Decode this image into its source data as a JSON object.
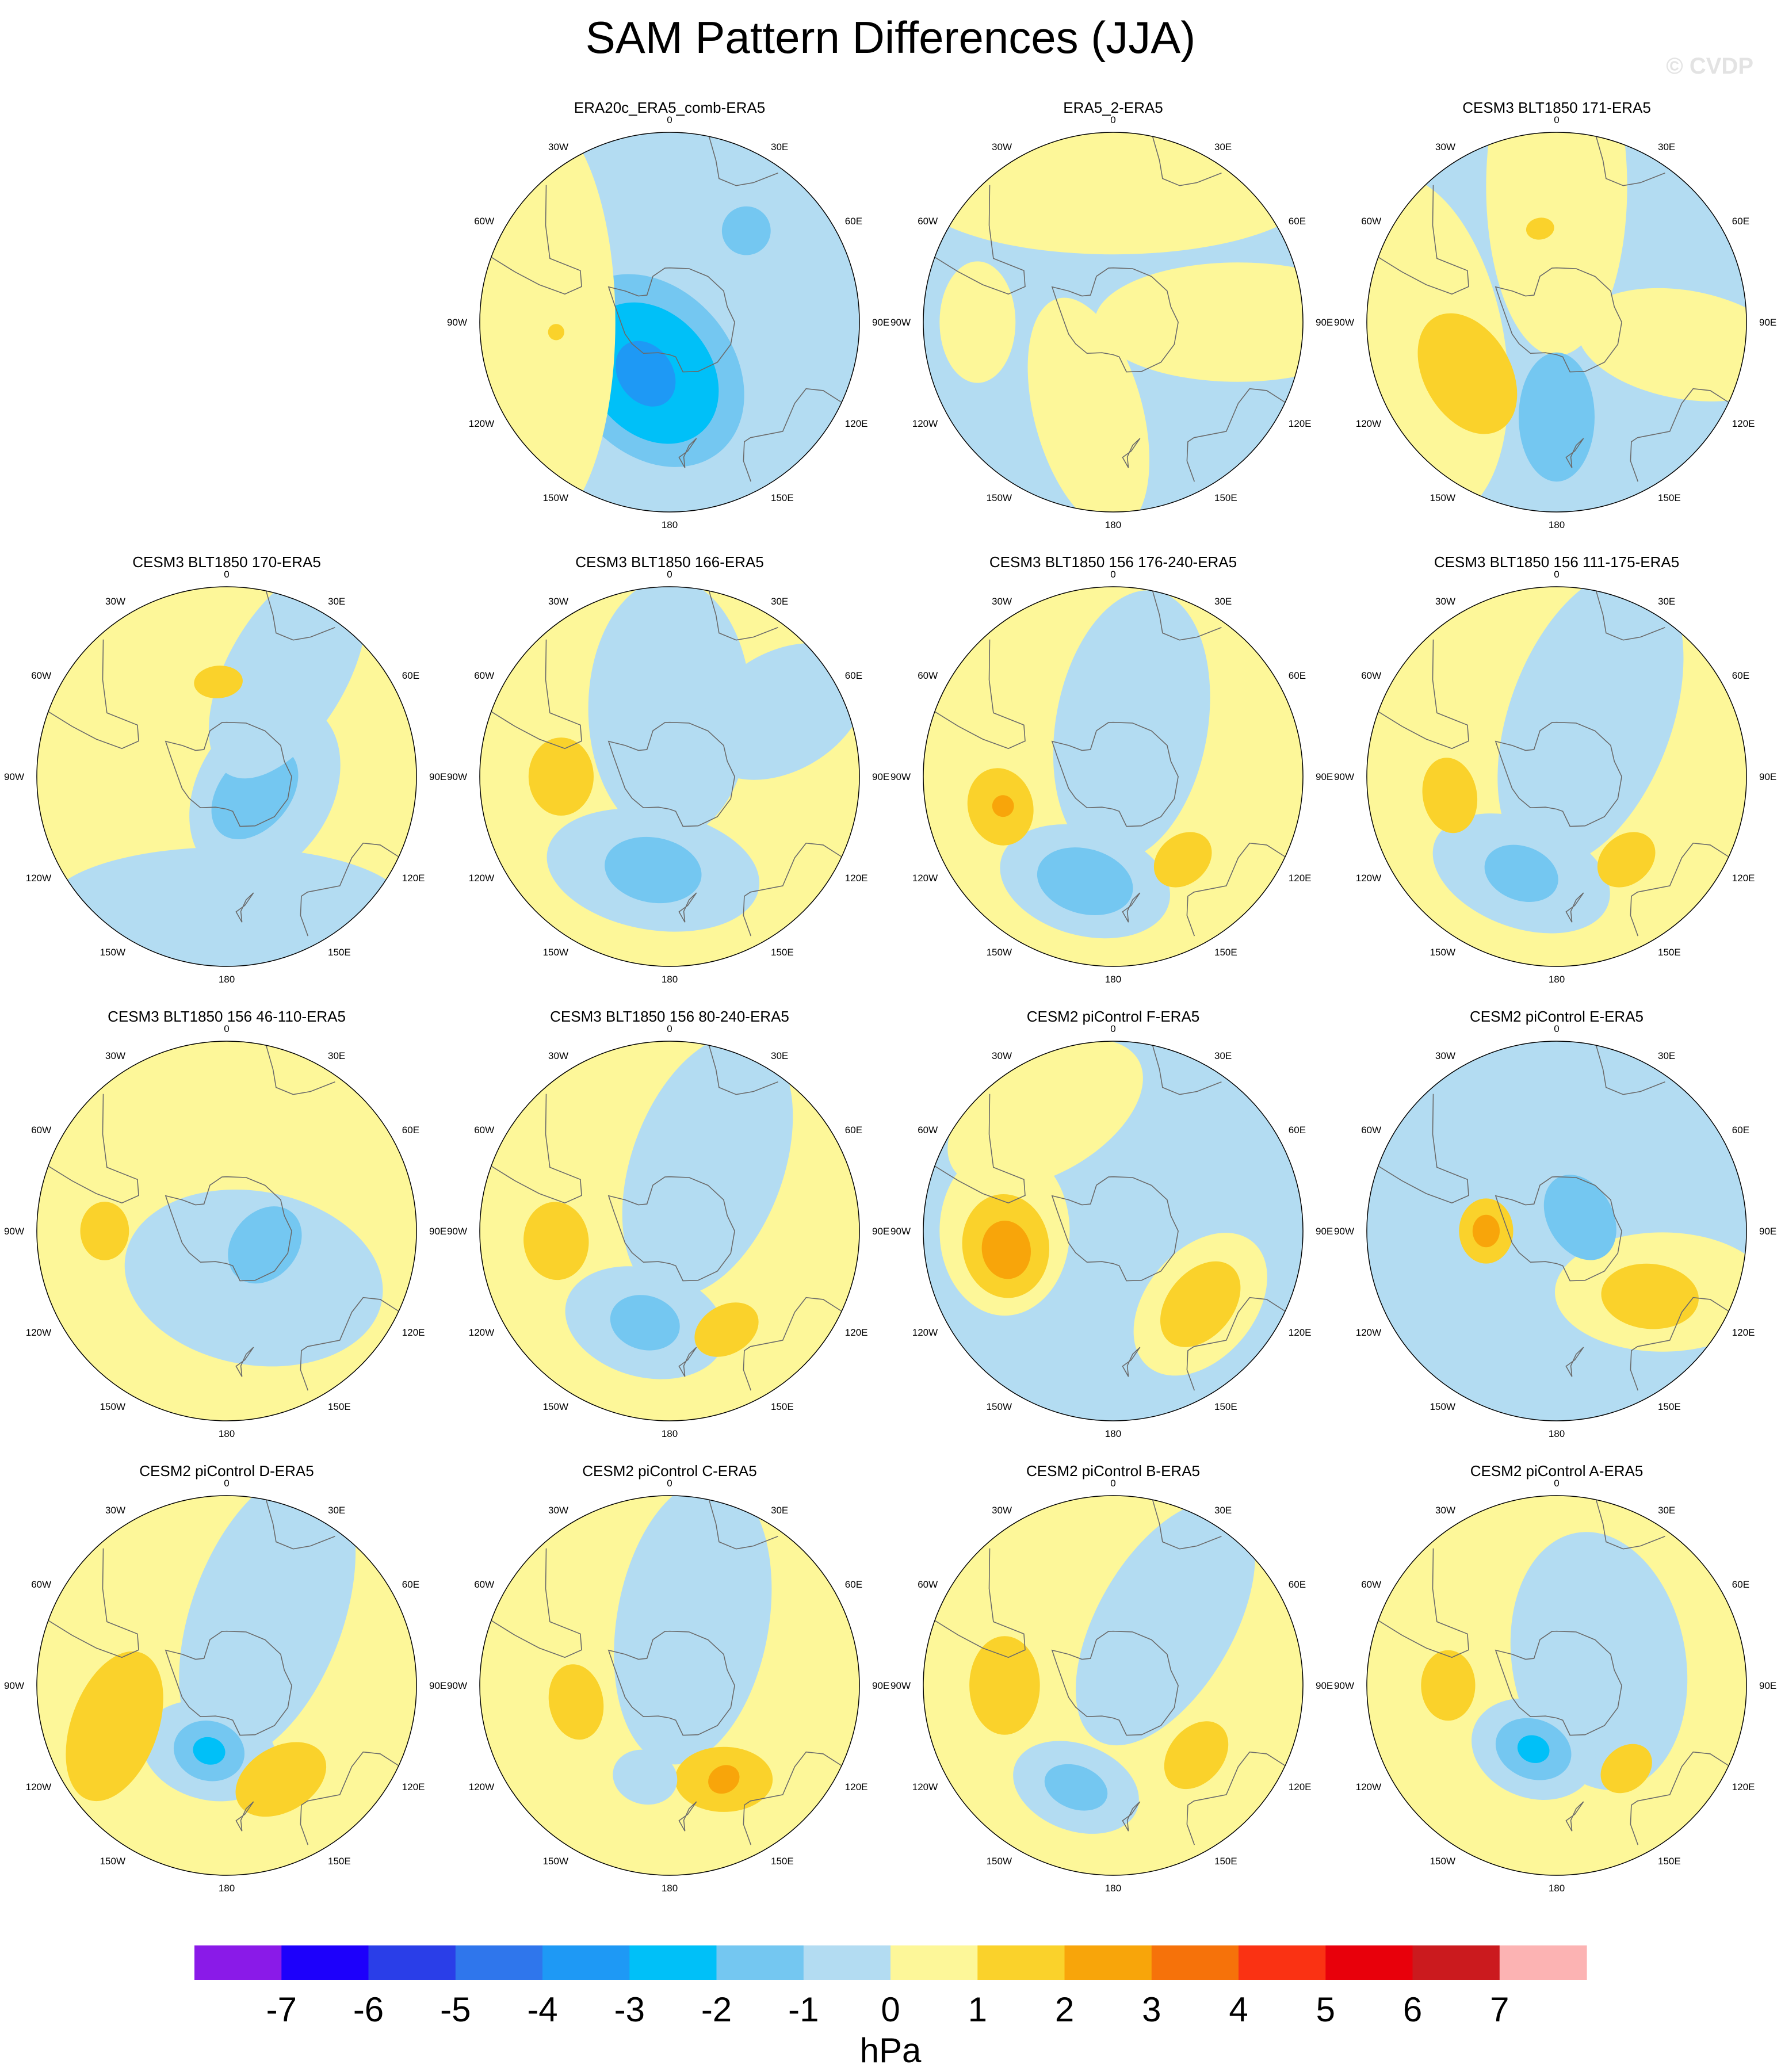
{
  "page": {
    "title": "SAM Pattern Differences (JJA)",
    "watermark": "© CVDP"
  },
  "chart_data": {
    "type": "contour",
    "projection": "south-polar-stereographic",
    "variable": "Sea level pressure difference",
    "units": "hPa",
    "longitude_labels": [
      "0",
      "30E",
      "60E",
      "90E",
      "120E",
      "150E",
      "180",
      "150W",
      "120W",
      "90W",
      "60W",
      "30W"
    ],
    "colorbar": {
      "ticks": [
        "-7",
        "-6",
        "-5",
        "-4",
        "-3",
        "-2",
        "-1",
        "0",
        "1",
        "2",
        "3",
        "4",
        "5",
        "6",
        "7"
      ],
      "colors": [
        "#8a1ae8",
        "#1d00fb",
        "#2a3ee8",
        "#2f76ec",
        "#1e99f5",
        "#00c0f8",
        "#74c7f1",
        "#b3dcf2",
        "#fdf799",
        "#fad22b",
        "#f8a50a",
        "#f6720a",
        "#fa3213",
        "#e8000b",
        "#cb1a1e",
        "#fcb3b3"
      ],
      "units": "hPa"
    },
    "panels": [
      {
        "title": "ERA20c_ERA5_comb-ERA5",
        "background": "neg1",
        "features": [
          {
            "lat": -71,
            "lon": 200,
            "lvl": "neg2",
            "r": 30,
            "s": 1.3,
            "rot": 30
          },
          {
            "lat": -70,
            "lon": 200,
            "lvl": "neg3",
            "r": 22,
            "s": 1.3,
            "rot": 30
          },
          {
            "lat": -69,
            "lon": 205,
            "lvl": "neg4",
            "r": 10,
            "s": 1.3,
            "rot": 30
          },
          {
            "lat": -46,
            "lon": 40,
            "lvl": "neg2",
            "r": 9,
            "s": 1,
            "rot": 0
          },
          {
            "lat": -40,
            "lon": 270,
            "lvl": "pos1",
            "r": 30,
            "s": 2.6,
            "rot": 0
          },
          {
            "lat": -48,
            "lon": 265,
            "lvl": "pos2",
            "r": 3,
            "s": 1,
            "rot": 0
          }
        ]
      },
      {
        "title": "ERA5_2-ERA5",
        "background": "neg1",
        "features": [
          {
            "lat": -40,
            "lon": 0,
            "lvl": "pos1",
            "r": 25,
            "s": 3,
            "rot": 0
          },
          {
            "lat": -44,
            "lon": 90,
            "lvl": "pos1",
            "r": 22,
            "s": 2.4,
            "rot": 90
          },
          {
            "lat": -55,
            "lon": 195,
            "lvl": "pos1",
            "r": 20,
            "s": 2.2,
            "rot": 60
          },
          {
            "lat": -40,
            "lon": 270,
            "lvl": "pos1",
            "r": 14,
            "s": 1.6,
            "rot": 0
          }
        ]
      },
      {
        "title": "CESM3 BLT1850 171-ERA5",
        "background": "neg1",
        "features": [
          {
            "lat": -38,
            "lon": 260,
            "lvl": "pos1",
            "r": 32,
            "s": 2,
            "rot": 0
          },
          {
            "lat": -40,
            "lon": 0,
            "lvl": "pos1",
            "r": 26,
            "s": 2.4,
            "rot": 90
          },
          {
            "lat": -42,
            "lon": 100,
            "lvl": "pos1",
            "r": 20,
            "s": 2,
            "rot": 90
          },
          {
            "lat": -52,
            "lon": 240,
            "lvl": "pos2",
            "r": 16,
            "s": 1.5,
            "rot": 0
          },
          {
            "lat": -55,
            "lon": 180,
            "lvl": "neg2",
            "r": 14,
            "s": 1.7,
            "rot": 90
          },
          {
            "lat": -55,
            "lon": 350,
            "lvl": "pos2",
            "r": 4,
            "s": 1.3,
            "rot": 0
          }
        ]
      },
      {
        "title": "CESM3 BLT1850 170-ERA5",
        "background": "pos1",
        "features": [
          {
            "lat": -75,
            "lon": 110,
            "lvl": "neg1",
            "r": 25,
            "s": 1.4,
            "rot": 10
          },
          {
            "lat": -78,
            "lon": 120,
            "lvl": "neg2",
            "r": 13,
            "s": 1.5,
            "rot": 10
          },
          {
            "lat": -45,
            "lon": 30,
            "lvl": "neg1",
            "r": 22,
            "s": 2,
            "rot": 90
          },
          {
            "lat": -42,
            "lon": 180,
            "lvl": "neg1",
            "r": 22,
            "s": 3,
            "rot": 0
          },
          {
            "lat": -55,
            "lon": 355,
            "lvl": "pos2",
            "r": 6,
            "s": 1.5,
            "rot": 0
          }
        ]
      },
      {
        "title": "CESM3 BLT1850 166-ERA5",
        "background": "pos1",
        "features": [
          {
            "lat": -65,
            "lon": 0,
            "lvl": "neg1",
            "r": 30,
            "s": 1.6,
            "rot": 90
          },
          {
            "lat": -55,
            "lon": 190,
            "lvl": "neg1",
            "r": 22,
            "s": 1.8,
            "rot": 0
          },
          {
            "lat": -55,
            "lon": 190,
            "lvl": "neg2",
            "r": 12,
            "s": 1.5,
            "rot": 0
          },
          {
            "lat": -42,
            "lon": 60,
            "lvl": "neg1",
            "r": 22,
            "s": 1.5,
            "rot": 90
          },
          {
            "lat": -50,
            "lon": 270,
            "lvl": "pos2",
            "r": 12,
            "s": 1.2,
            "rot": 0
          }
        ]
      },
      {
        "title": "CESM3 BLT1850 156 176-240-ERA5",
        "background": "pos1",
        "features": [
          {
            "lat": -70,
            "lon": 20,
            "lvl": "neg1",
            "r": 28,
            "s": 1.8,
            "rot": 80
          },
          {
            "lat": -50,
            "lon": 195,
            "lvl": "neg1",
            "r": 20,
            "s": 1.6,
            "rot": 0
          },
          {
            "lat": -50,
            "lon": 195,
            "lvl": "neg2",
            "r": 12,
            "s": 1.5,
            "rot": 0
          },
          {
            "lat": -47,
            "lon": 255,
            "lvl": "pos2",
            "r": 12,
            "s": 1.2,
            "rot": 0
          },
          {
            "lat": -48,
            "lon": 255,
            "lvl": "pos3",
            "r": 4,
            "s": 1,
            "rot": 0
          },
          {
            "lat": -50,
            "lon": 140,
            "lvl": "pos2",
            "r": 9,
            "s": 1.3,
            "rot": 0
          }
        ]
      },
      {
        "title": "CESM3 BLT1850 156 111-175-ERA5",
        "background": "pos1",
        "features": [
          {
            "lat": -65,
            "lon": 30,
            "lvl": "neg1",
            "r": 30,
            "s": 1.9,
            "rot": 80
          },
          {
            "lat": -52,
            "lon": 200,
            "lvl": "neg1",
            "r": 20,
            "s": 1.7,
            "rot": 0
          },
          {
            "lat": -52,
            "lon": 200,
            "lvl": "neg2",
            "r": 10,
            "s": 1.4,
            "rot": 0
          },
          {
            "lat": -50,
            "lon": 260,
            "lvl": "pos2",
            "r": 10,
            "s": 1.4,
            "rot": 0
          },
          {
            "lat": -50,
            "lon": 140,
            "lvl": "pos2",
            "r": 9,
            "s": 1.3,
            "rot": 0
          }
        ]
      },
      {
        "title": "CESM3 BLT1850 156 46-110-ERA5",
        "background": "pos1",
        "features": [
          {
            "lat": -70,
            "lon": 150,
            "lvl": "neg1",
            "r": 32,
            "s": 1.5,
            "rot": 40
          },
          {
            "lat": -75,
            "lon": 110,
            "lvl": "neg2",
            "r": 12,
            "s": 1.3,
            "rot": 20
          },
          {
            "lat": -45,
            "lon": 270,
            "lvl": "pos2",
            "r": 9,
            "s": 1.2,
            "rot": 0
          }
        ]
      },
      {
        "title": "CESM3 BLT1850 156 80-240-ERA5",
        "background": "pos1",
        "features": [
          {
            "lat": -62,
            "lon": 30,
            "lvl": "neg1",
            "r": 28,
            "s": 1.8,
            "rot": 80
          },
          {
            "lat": -55,
            "lon": 195,
            "lvl": "neg1",
            "r": 20,
            "s": 1.5,
            "rot": 0
          },
          {
            "lat": -55,
            "lon": 195,
            "lvl": "neg2",
            "r": 10,
            "s": 1.3,
            "rot": 0
          },
          {
            "lat": -48,
            "lon": 265,
            "lvl": "pos2",
            "r": 12,
            "s": 1.2,
            "rot": 0
          },
          {
            "lat": -48,
            "lon": 150,
            "lvl": "pos2",
            "r": 9,
            "s": 1.4,
            "rot": 0
          }
        ]
      },
      {
        "title": "CESM2 piControl F-ERA5",
        "background": "neg1",
        "features": [
          {
            "lat": -50,
            "lon": 270,
            "lvl": "pos1",
            "r": 24,
            "s": 1.3,
            "rot": 0
          },
          {
            "lat": -50,
            "lon": 262,
            "lvl": "pos2",
            "r": 16,
            "s": 1.2,
            "rot": 0
          },
          {
            "lat": -50,
            "lon": 260,
            "lvl": "pos3",
            "r": 9,
            "s": 1.2,
            "rot": 0
          },
          {
            "lat": -48,
            "lon": 130,
            "lvl": "pos1",
            "r": 20,
            "s": 1.5,
            "rot": 0
          },
          {
            "lat": -48,
            "lon": 130,
            "lvl": "pos2",
            "r": 12,
            "s": 1.5,
            "rot": 0
          },
          {
            "lat": -40,
            "lon": 330,
            "lvl": "pos1",
            "r": 22,
            "s": 1.8,
            "rot": 0
          }
        ]
      },
      {
        "title": "CESM2 piControl E-ERA5",
        "background": "neg1",
        "features": [
          {
            "lat": -64,
            "lon": 270,
            "lvl": "pos2",
            "r": 10,
            "s": 1.2,
            "rot": 0
          },
          {
            "lat": -64,
            "lon": 270,
            "lvl": "pos3",
            "r": 5,
            "s": 1.2,
            "rot": 0
          },
          {
            "lat": -45,
            "lon": 120,
            "lvl": "pos1",
            "r": 22,
            "s": 1.8,
            "rot": 60
          },
          {
            "lat": -48,
            "lon": 125,
            "lvl": "pos2",
            "r": 12,
            "s": 1.5,
            "rot": 60
          },
          {
            "lat": -80,
            "lon": 60,
            "lvl": "neg2",
            "r": 12,
            "s": 1.4,
            "rot": 0
          }
        ]
      },
      {
        "title": "CESM2 piControl D-ERA5",
        "background": "pos1",
        "features": [
          {
            "lat": -60,
            "lon": 30,
            "lvl": "neg1",
            "r": 28,
            "s": 2,
            "rot": 80
          },
          {
            "lat": -65,
            "lon": 195,
            "lvl": "neg1",
            "r": 18,
            "s": 1.4,
            "rot": 0
          },
          {
            "lat": -65,
            "lon": 195,
            "lvl": "neg2",
            "r": 11,
            "s": 1.2,
            "rot": 0
          },
          {
            "lat": -65,
            "lon": 195,
            "lvl": "neg3",
            "r": 5,
            "s": 1.2,
            "rot": 0
          },
          {
            "lat": -50,
            "lon": 150,
            "lvl": "pos2",
            "r": 12,
            "s": 1.5,
            "rot": 0
          },
          {
            "lat": -46,
            "lon": 250,
            "lvl": "pos2",
            "r": 16,
            "s": 1.8,
            "rot": 40
          }
        ]
      },
      {
        "title": "CESM2 piControl C-ERA5",
        "background": "pos1",
        "features": [
          {
            "lat": -65,
            "lon": 20,
            "lvl": "neg1",
            "r": 28,
            "s": 1.9,
            "rot": 80
          },
          {
            "lat": -50,
            "lon": 150,
            "lvl": "pos2",
            "r": 12,
            "s": 1.5,
            "rot": 30
          },
          {
            "lat": -50,
            "lon": 150,
            "lvl": "pos3",
            "r": 5,
            "s": 1.2,
            "rot": 0
          },
          {
            "lat": -55,
            "lon": 260,
            "lvl": "pos2",
            "r": 10,
            "s": 1.4,
            "rot": 0
          },
          {
            "lat": -55,
            "lon": 195,
            "lvl": "neg1",
            "r": 10,
            "s": 1.2,
            "rot": 0
          }
        ]
      },
      {
        "title": "CESM2 piControl B-ERA5",
        "background": "pos1",
        "features": [
          {
            "lat": -60,
            "lon": 40,
            "lvl": "neg1",
            "r": 25,
            "s": 2,
            "rot": 80
          },
          {
            "lat": -50,
            "lon": 200,
            "lvl": "neg1",
            "r": 16,
            "s": 1.5,
            "rot": 0
          },
          {
            "lat": -50,
            "lon": 200,
            "lvl": "neg2",
            "r": 8,
            "s": 1.5,
            "rot": 0
          },
          {
            "lat": -50,
            "lon": 270,
            "lvl": "pos2",
            "r": 13,
            "s": 1.4,
            "rot": 0
          },
          {
            "lat": -50,
            "lon": 130,
            "lvl": "pos2",
            "r": 10,
            "s": 1.4,
            "rot": 0
          }
        ]
      },
      {
        "title": "CESM2 piControl A-ERA5",
        "background": "pos1",
        "features": [
          {
            "lat": -72,
            "lon": 60,
            "lvl": "neg1",
            "r": 32,
            "s": 1.5,
            "rot": 20
          },
          {
            "lat": -65,
            "lon": 200,
            "lvl": "neg1",
            "r": 18,
            "s": 1.3,
            "rot": 0
          },
          {
            "lat": -65,
            "lon": 200,
            "lvl": "neg2",
            "r": 11,
            "s": 1.3,
            "rot": 0
          },
          {
            "lat": -65,
            "lon": 200,
            "lvl": "neg3",
            "r": 5,
            "s": 1.2,
            "rot": 0
          },
          {
            "lat": -50,
            "lon": 270,
            "lvl": "pos2",
            "r": 10,
            "s": 1.3,
            "rot": 0
          },
          {
            "lat": -50,
            "lon": 140,
            "lvl": "pos2",
            "r": 8,
            "s": 1.3,
            "rot": 0
          }
        ]
      }
    ]
  }
}
